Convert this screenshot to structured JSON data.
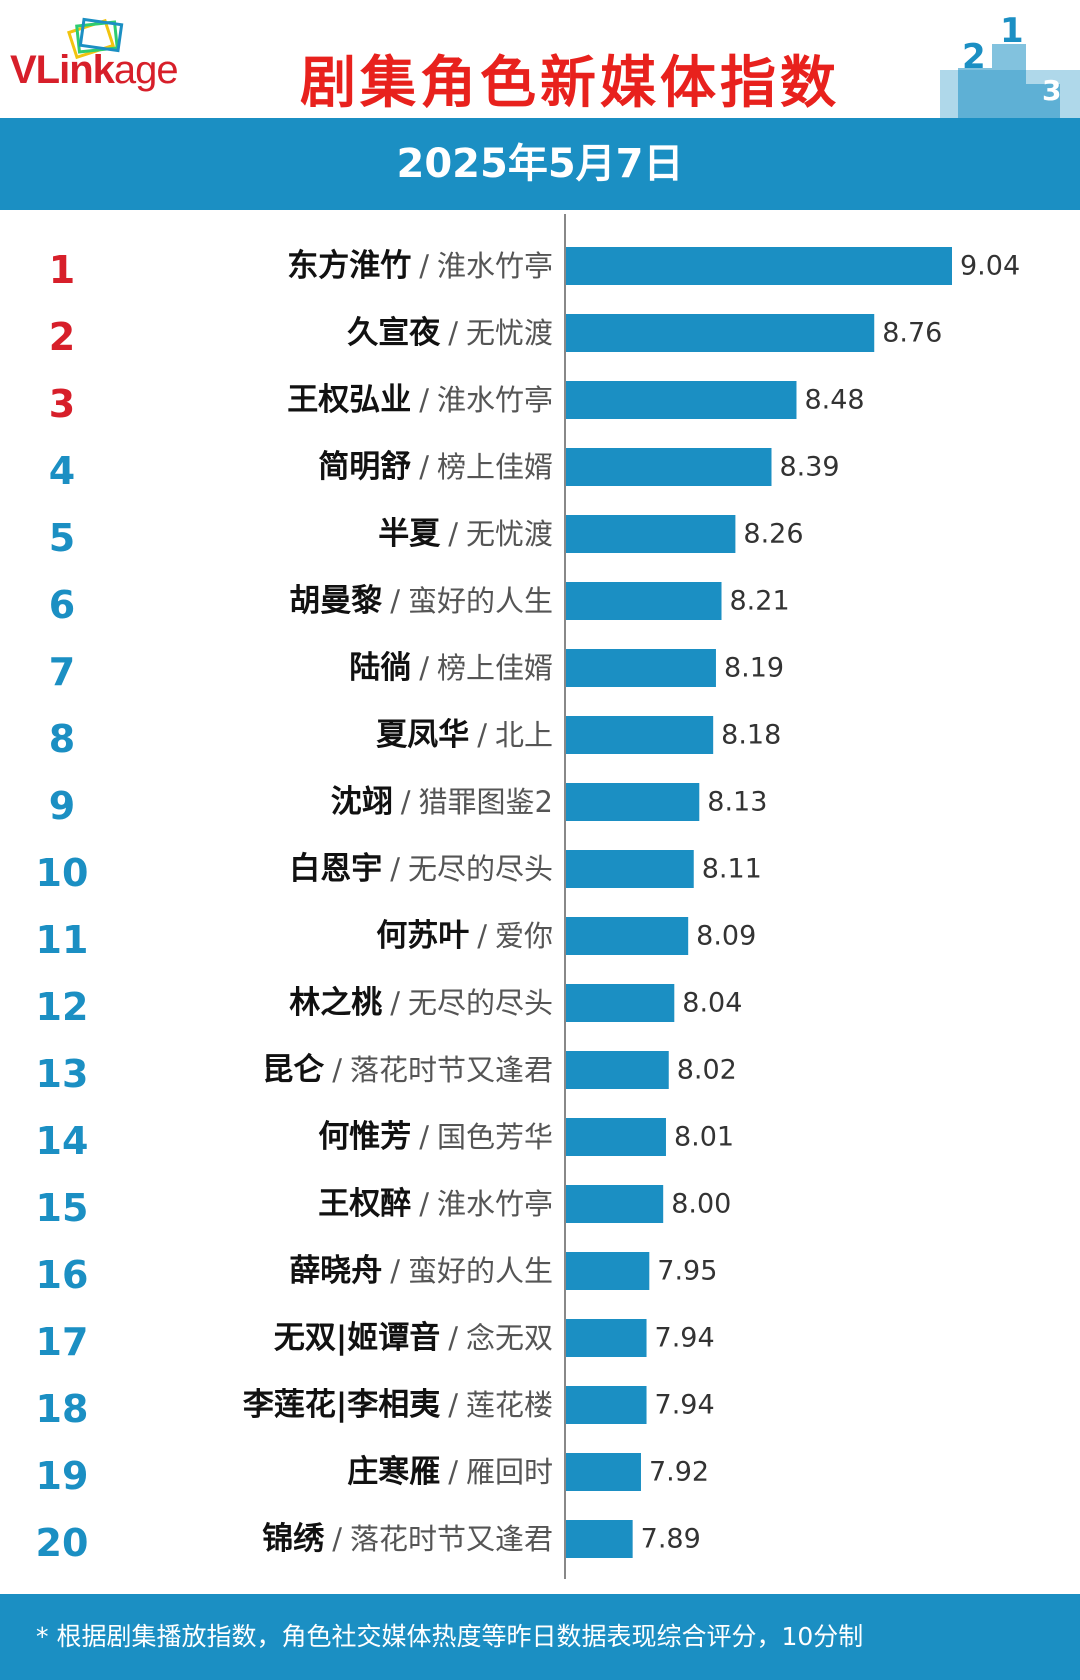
{
  "header": {
    "logo_text_a": "VLink",
    "logo_text_b": "age",
    "title": "剧集角色新媒体指数",
    "date": "2025年5月7日",
    "podium_labels": [
      "2",
      "1",
      "3"
    ]
  },
  "footer": {
    "note": "* 根据剧集播放指数，角色社交媒体热度等昨日数据表现综合评分，10分制"
  },
  "colors": {
    "accent": "#1b8fc3",
    "bar": "#1b8fc3",
    "top_rank": "#d71f2a",
    "rank": "#1b8fc3",
    "title": "#e8211d"
  },
  "chart_data": {
    "type": "bar",
    "orientation": "horizontal",
    "separator": "/",
    "ranks": [
      "1",
      "2",
      "3",
      "4",
      "5",
      "6",
      "7",
      "8",
      "9",
      "10",
      "11",
      "12",
      "13",
      "14",
      "15",
      "16",
      "17",
      "18",
      "19",
      "20"
    ],
    "names": [
      "东方淮竹",
      "久宣夜",
      "王权弘业",
      "简明舒",
      "半夏",
      "胡曼黎",
      "陆徜",
      "夏凤华",
      "沈翊",
      "白恩宇",
      "何苏叶",
      "林之桃",
      "昆仑",
      "何惟芳",
      "王权醉",
      "薛晓舟",
      "无双|姬谭音",
      "李莲花|李相夷",
      "庄寒雁",
      "锦绣"
    ],
    "dramas": [
      "淮水竹亭",
      "无忧渡",
      "淮水竹亭",
      "榜上佳婿",
      "无忧渡",
      "蛮好的人生",
      "榜上佳婿",
      "北上",
      "猎罪图鉴2",
      "无尽的尽头",
      "爱你",
      "无尽的尽头",
      "落花时节又逢君",
      "国色芳华",
      "淮水竹亭",
      "蛮好的人生",
      "念无双",
      "莲花楼",
      "雁回时",
      "落花时节又逢君"
    ],
    "values": [
      9.04,
      8.76,
      8.48,
      8.39,
      8.26,
      8.21,
      8.19,
      8.18,
      8.13,
      8.11,
      8.09,
      8.04,
      8.02,
      8.01,
      8.0,
      7.95,
      7.94,
      7.94,
      7.92,
      7.89
    ],
    "value_labels": [
      "9.04",
      "8.76",
      "8.48",
      "8.39",
      "8.26",
      "8.21",
      "8.19",
      "8.18",
      "8.13",
      "8.11",
      "8.09",
      "8.04",
      "8.02",
      "8.01",
      "8.00",
      "7.95",
      "7.94",
      "7.94",
      "7.92",
      "7.89"
    ],
    "xlim": [
      7.65,
      9.04
    ],
    "grid": false,
    "legend": "none"
  }
}
